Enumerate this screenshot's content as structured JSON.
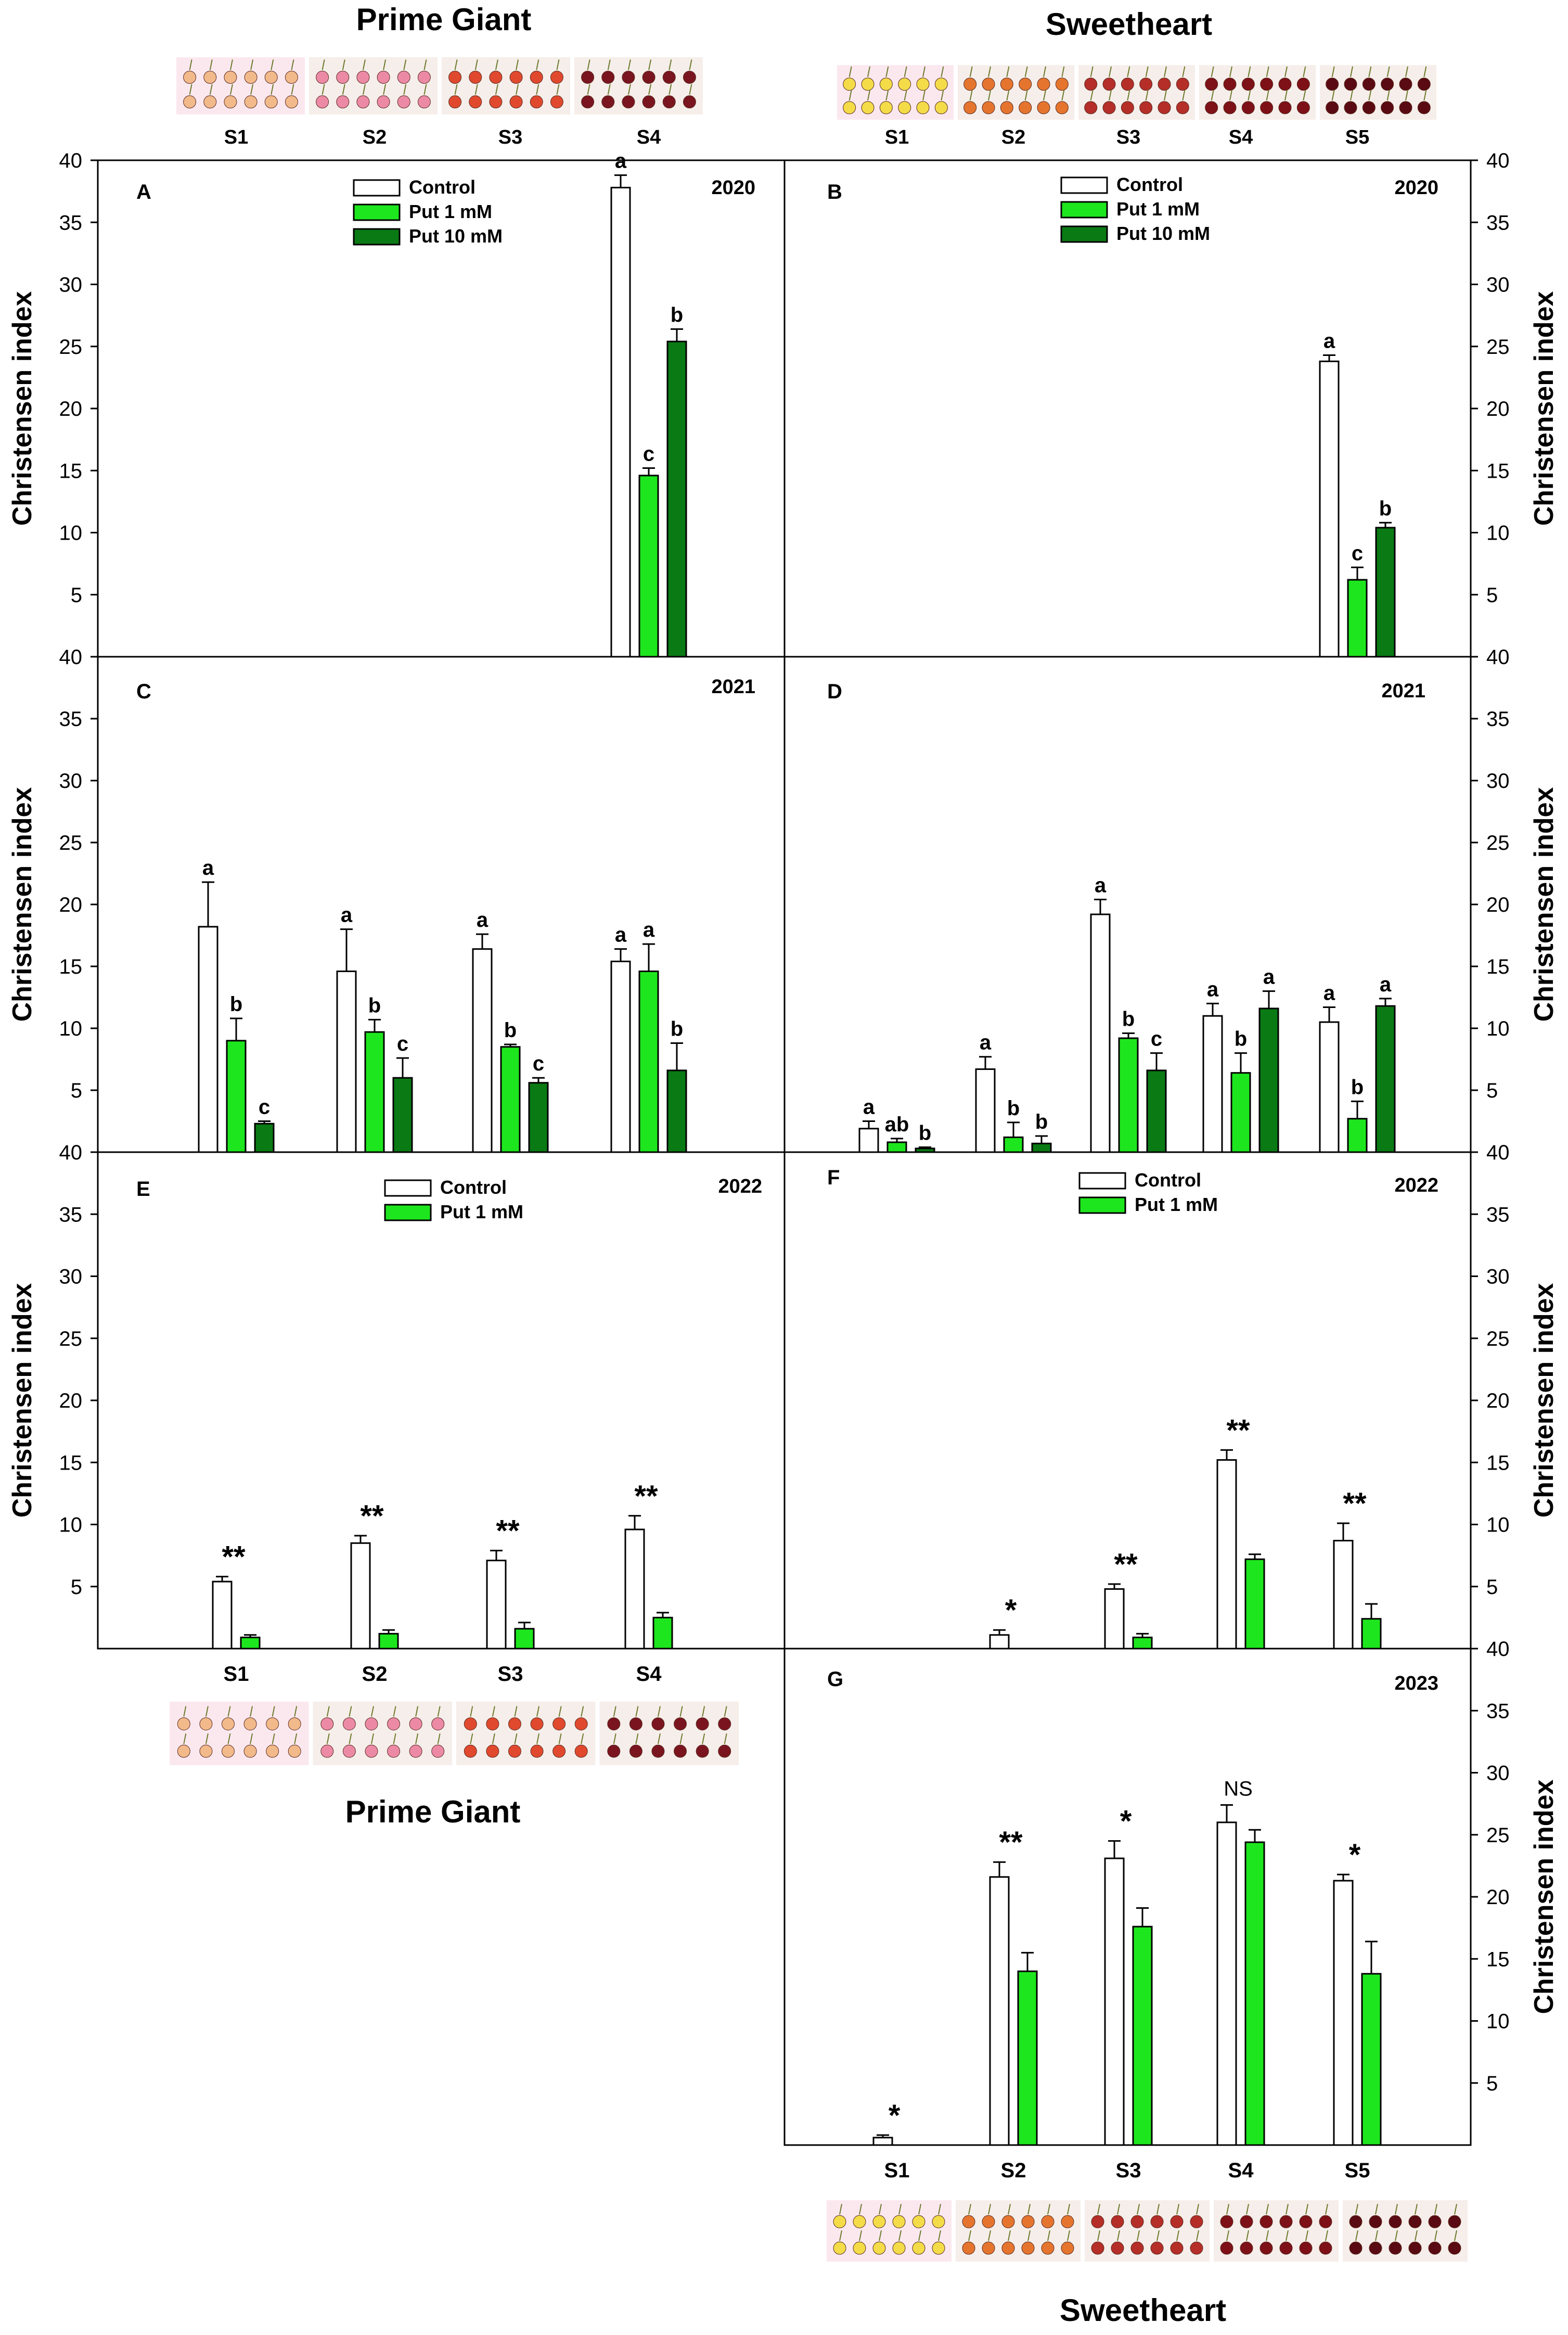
{
  "figure": {
    "cultivar_top_left": "Prime Giant",
    "cultivar_top_right": "Sweetheart",
    "cultivar_bottom_left": "Prime Giant",
    "cultivar_bottom_right": "Sweetheart",
    "photo_labels_pg": [
      "S1",
      "S2",
      "S3",
      "S4"
    ],
    "photo_labels_sh": [
      "S1",
      "S2",
      "S3",
      "S4",
      "S5"
    ],
    "colors": {
      "control": "#ffffff",
      "put1": "#1ee61e",
      "put10": "#0a7a14",
      "axis": "#000000",
      "photo_pg": [
        "#f2b98a",
        "#ec8aa6",
        "#e0492e",
        "#7a1520"
      ],
      "photo_sh": [
        "#f3dc48",
        "#e5752e",
        "#b52e28",
        "#7e1018",
        "#5a0a12"
      ]
    }
  },
  "chart_data": [
    {
      "id": "A",
      "type": "bar",
      "year": "2020",
      "cultivar": "Prime Giant",
      "ylabel": "Christensen index",
      "ylim": [
        0,
        40
      ],
      "yticks": [
        "5",
        "10",
        "15",
        "20",
        "25",
        "30",
        "35",
        "40"
      ],
      "categories": [
        "S1",
        "S2",
        "S3",
        "S4"
      ],
      "show_xticks": false,
      "legend": [
        "Control",
        "Put 1 mM",
        "Put 10 mM"
      ],
      "legend_position": "top-center",
      "series": [
        {
          "name": "Control",
          "values": [
            null,
            null,
            null,
            37.8
          ],
          "errors": [
            0,
            0,
            0,
            1.0
          ],
          "letters": [
            "",
            "",
            "",
            "a"
          ]
        },
        {
          "name": "Put 1 mM",
          "values": [
            null,
            null,
            null,
            14.6
          ],
          "errors": [
            0,
            0,
            0,
            0.6
          ],
          "letters": [
            "",
            "",
            "",
            "c"
          ]
        },
        {
          "name": "Put 10 mM",
          "values": [
            null,
            null,
            null,
            25.4
          ],
          "errors": [
            0,
            0,
            0,
            1.0
          ],
          "letters": [
            "",
            "",
            "",
            "b"
          ]
        }
      ]
    },
    {
      "id": "B",
      "type": "bar",
      "year": "2020",
      "cultivar": "Sweetheart",
      "ylabel": "Christensen index",
      "ylim": [
        0,
        40
      ],
      "yticks": [
        "5",
        "10",
        "15",
        "20",
        "25",
        "30",
        "35",
        "40"
      ],
      "categories": [
        "S1",
        "S2",
        "S3",
        "S4",
        "S5"
      ],
      "show_xticks": false,
      "legend": [
        "Control",
        "Put 1 mM",
        "Put 10 mM"
      ],
      "legend_position": "top-center",
      "series": [
        {
          "name": "Control",
          "values": [
            null,
            null,
            null,
            null,
            23.8
          ],
          "errors": [
            0,
            0,
            0,
            0,
            0.5
          ],
          "letters": [
            "",
            "",
            "",
            "",
            "a"
          ]
        },
        {
          "name": "Put 1 mM",
          "values": [
            null,
            null,
            null,
            null,
            6.2
          ],
          "errors": [
            0,
            0,
            0,
            0,
            1.0
          ],
          "letters": [
            "",
            "",
            "",
            "",
            "c"
          ]
        },
        {
          "name": "Put 10 mM",
          "values": [
            null,
            null,
            null,
            null,
            10.4
          ],
          "errors": [
            0,
            0,
            0,
            0,
            0.4
          ],
          "letters": [
            "",
            "",
            "",
            "",
            "b"
          ]
        }
      ]
    },
    {
      "id": "C",
      "type": "bar",
      "year": "2021",
      "cultivar": "Prime Giant",
      "ylabel": "Christensen index",
      "ylim": [
        0,
        40
      ],
      "yticks": [
        "5",
        "10",
        "15",
        "20",
        "25",
        "30",
        "35",
        "40"
      ],
      "categories": [
        "S1",
        "S2",
        "S3",
        "S4"
      ],
      "show_xticks": false,
      "legend": [],
      "legend_position": "none",
      "series": [
        {
          "name": "Control",
          "values": [
            18.2,
            14.6,
            16.4,
            15.4
          ],
          "errors": [
            3.6,
            3.4,
            1.2,
            1.0
          ],
          "letters": [
            "a",
            "a",
            "a",
            "a"
          ]
        },
        {
          "name": "Put 1 mM",
          "values": [
            9.0,
            9.7,
            8.5,
            14.6
          ],
          "errors": [
            1.8,
            1.0,
            0.2,
            2.2
          ],
          "letters": [
            "b",
            "b",
            "b",
            "a"
          ]
        },
        {
          "name": "Put 10 mM",
          "values": [
            2.3,
            6.0,
            5.6,
            6.6
          ],
          "errors": [
            0.2,
            1.6,
            0.4,
            2.2
          ],
          "letters": [
            "c",
            "c",
            "c",
            "b"
          ]
        }
      ]
    },
    {
      "id": "D",
      "type": "bar",
      "year": "2021",
      "cultivar": "Sweetheart",
      "ylabel": "Christensen index",
      "ylim": [
        0,
        40
      ],
      "yticks": [
        "5",
        "10",
        "15",
        "20",
        "25",
        "30",
        "35",
        "40"
      ],
      "categories": [
        "S1",
        "S2",
        "S3",
        "S4",
        "S5"
      ],
      "show_xticks": false,
      "legend": [],
      "legend_position": "none",
      "series": [
        {
          "name": "Control",
          "values": [
            1.9,
            6.7,
            19.2,
            11.0,
            10.5
          ],
          "errors": [
            0.6,
            1.0,
            1.2,
            1.0,
            1.2
          ],
          "letters": [
            "a",
            "a",
            "a",
            "a",
            "a"
          ]
        },
        {
          "name": "Put 1 mM",
          "values": [
            0.8,
            1.2,
            9.2,
            6.4,
            2.7
          ],
          "errors": [
            0.3,
            1.2,
            0.4,
            1.6,
            1.4
          ],
          "letters": [
            "ab",
            "b",
            "b",
            "b",
            "b"
          ]
        },
        {
          "name": "Put 10 mM",
          "values": [
            0.3,
            0.7,
            6.6,
            11.6,
            11.8
          ],
          "errors": [
            0.1,
            0.6,
            1.4,
            1.4,
            0.6
          ],
          "letters": [
            "b",
            "b",
            "c",
            "a",
            "a"
          ]
        }
      ]
    },
    {
      "id": "E",
      "type": "bar",
      "year": "2022",
      "cultivar": "Prime Giant",
      "ylabel": "Christensen index",
      "ylim": [
        0,
        40
      ],
      "yticks": [
        "5",
        "10",
        "15",
        "20",
        "25",
        "30",
        "35",
        "40"
      ],
      "categories": [
        "S1",
        "S2",
        "S3",
        "S4"
      ],
      "show_xticks": true,
      "legend": [
        "Control",
        "Put 1 mM"
      ],
      "legend_position": "top-center",
      "significance": [
        "**",
        "**",
        "**",
        "**"
      ],
      "series": [
        {
          "name": "Control",
          "values": [
            5.4,
            8.5,
            7.1,
            9.6
          ],
          "errors": [
            0.4,
            0.6,
            0.8,
            1.1
          ]
        },
        {
          "name": "Put 1 mM",
          "values": [
            0.9,
            1.2,
            1.6,
            2.5
          ],
          "errors": [
            0.2,
            0.3,
            0.5,
            0.4
          ]
        }
      ]
    },
    {
      "id": "F",
      "type": "bar",
      "year": "2022",
      "cultivar": "Sweetheart",
      "ylabel": "Christensen index",
      "ylim": [
        0,
        40
      ],
      "yticks": [
        "5",
        "10",
        "15",
        "20",
        "25",
        "30",
        "35",
        "40"
      ],
      "categories": [
        "S1",
        "S2",
        "S3",
        "S4",
        "S5"
      ],
      "show_xticks": false,
      "legend": [
        "Control",
        "Put 1 mM"
      ],
      "legend_position": "top-center",
      "significance": [
        "",
        "*",
        "**",
        "**",
        "**"
      ],
      "series": [
        {
          "name": "Control",
          "values": [
            null,
            1.1,
            4.8,
            15.2,
            8.7
          ],
          "errors": [
            0,
            0.4,
            0.4,
            0.8,
            1.4
          ]
        },
        {
          "name": "Put 1 mM",
          "values": [
            null,
            null,
            0.9,
            7.2,
            2.4
          ],
          "errors": [
            0,
            0,
            0.3,
            0.4,
            1.2
          ]
        }
      ]
    },
    {
      "id": "G",
      "type": "bar",
      "year": "2023",
      "cultivar": "Sweetheart",
      "ylabel": "Christensen index",
      "ylim": [
        0,
        40
      ],
      "yticks": [
        "5",
        "10",
        "15",
        "20",
        "25",
        "30",
        "35",
        "40"
      ],
      "categories": [
        "S1",
        "S2",
        "S3",
        "S4",
        "S5"
      ],
      "show_xticks": true,
      "legend": [],
      "legend_position": "none",
      "significance": [
        "*",
        "**",
        "*",
        "NS",
        "*"
      ],
      "series": [
        {
          "name": "Control",
          "values": [
            0.6,
            21.6,
            23.1,
            26.0,
            21.3
          ],
          "errors": [
            0.2,
            1.2,
            1.4,
            1.4,
            0.5
          ]
        },
        {
          "name": "Put 1 mM",
          "values": [
            null,
            14.0,
            17.6,
            24.4,
            13.8
          ],
          "errors": [
            0,
            1.5,
            1.5,
            1.0,
            2.6
          ]
        }
      ]
    }
  ]
}
